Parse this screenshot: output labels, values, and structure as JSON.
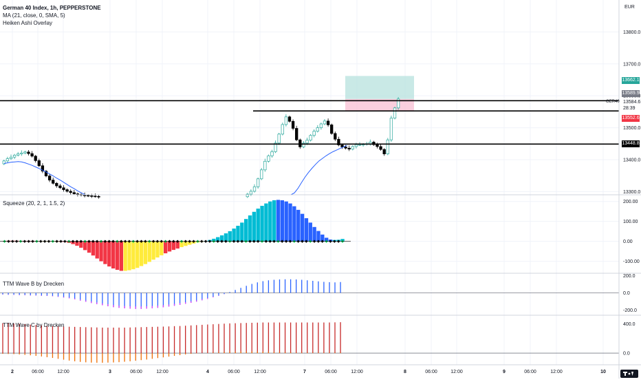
{
  "header": {
    "symbol_line": "German 40 Index, 1h, PEPPERSTONE",
    "ma_line": "MA (21, close, 0, SMA, 5)",
    "heiken_line": "Heiken Ashi Overlay",
    "currency": "EUR"
  },
  "panes": {
    "squeeze_title": "Squeeze (20, 2, 1, 1.5, 2)",
    "wave_b_title": "TTM Wave B by Drecken",
    "wave_c_title": "TTM Wave C by Drecken"
  },
  "price_labels": {
    "target": "13662.1",
    "current": "13589.9",
    "symbol_tag": "GER40",
    "symbol_price": "13584.6",
    "countdown": "28:39",
    "stop": "13552.6",
    "level": "13448.8"
  },
  "colors": {
    "bull": "#26a69a",
    "bear": "#000000",
    "ma": "#2962ff",
    "squeeze_red": "#f23645",
    "squeeze_yellow": "#ffeb3b",
    "squeeze_cyan": "#00bcd4",
    "squeeze_blue": "#2962ff",
    "wave_blue": "#2962ff",
    "wave_pink": "#e040fb",
    "wave_red": "#c62828",
    "wave_orange": "#ef6c00",
    "target_zone": "#b2dfdb",
    "stop_zone": "#f8bbd0",
    "logo_bg": "#131722"
  },
  "chart_data": [
    {
      "type": "candlestick",
      "name_printed": "",
      "y_ticks": [
        "13800.0",
        "13700.0",
        "13600.0",
        "13500.0",
        "13400.0",
        "13300.0"
      ],
      "ylim": [
        13290,
        13900
      ],
      "x_ticks": [
        "2",
        "06:00",
        "12:00",
        "3",
        "06:00",
        "12:00",
        "4",
        "06:00",
        "12:00",
        "7",
        "06:00",
        "12:00",
        "8",
        "06:00",
        "12:00",
        "9",
        "06:00",
        "12:00",
        "10"
      ],
      "horizontal_levels": [
        13584.6,
        13448.8
      ],
      "partial_level": 13552.6,
      "position": {
        "entry": 13589.9,
        "target": 13662.1,
        "stop": 13552.6
      },
      "segments": [
        {
          "start": 13387,
          "closes": [
            13396,
            13403,
            13408,
            13414,
            13418,
            13421,
            13424,
            13419,
            13411,
            13397,
            13381,
            13364,
            13349,
            13336,
            13326,
            13318,
            13312,
            13306,
            13301,
            13297,
            13293,
            13291,
            13289,
            13288,
            13287,
            13286,
            13285,
            13284
          ]
        },
        {
          "start": 13284,
          "closes": [
            13292,
            13301,
            13315,
            13340,
            13368,
            13395,
            13412,
            13425,
            13452,
            13480,
            13510,
            13534,
            13520,
            13498,
            13462,
            13440,
            13452,
            13461,
            13476,
            13489,
            13500,
            13512,
            13521,
            13509,
            13482,
            13464,
            13446,
            13440,
            13436,
            13433,
            13441,
            13447,
            13447,
            13448,
            13450,
            13455,
            13447,
            13441,
            13432,
            13418,
            13462,
            13530,
            13562,
            13590
          ]
        }
      ],
      "ma_segments": [
        {
          "start_close": 13387,
          "values": [
            13388,
            13390,
            13392,
            13393,
            13394,
            13393,
            13390,
            13386,
            13382,
            13377,
            13372,
            13367,
            13361,
            13355,
            13349,
            13342,
            13336,
            13329,
            13322,
            13315,
            13309,
            13302,
            13296,
            13291
          ]
        },
        {
          "values": [
            13290,
            13296,
            13310,
            13328,
            13345,
            13360,
            13373,
            13385,
            13396,
            13404,
            13412,
            13419,
            13425,
            13430,
            13435,
            13440,
            13445
          ]
        }
      ]
    },
    {
      "type": "histogram",
      "name_printed": "Squeeze (20, 2, 1, 1.5, 2)",
      "y_ticks": [
        "200.00",
        "100.00",
        "0.00",
        "-100.00"
      ],
      "ylim": [
        -160,
        230
      ],
      "values": [
        2,
        3,
        3,
        3,
        2,
        2,
        2,
        2,
        2,
        1,
        1,
        1,
        1,
        0,
        -1,
        -3,
        -8,
        -14,
        -22,
        -32,
        -44,
        -57,
        -71,
        -86,
        -100,
        -114,
        -126,
        -136,
        -143,
        -148,
        -148,
        -145,
        -140,
        -133,
        -124,
        -114,
        -103,
        -92,
        -81,
        -70,
        -60,
        -51,
        -43,
        -36,
        -29,
        -23,
        -17,
        -11,
        -6,
        -2,
        2,
        7,
        13,
        21,
        30,
        40,
        51,
        64,
        78,
        94,
        112,
        130,
        148,
        164,
        178,
        190,
        200,
        206,
        208,
        206,
        200,
        190,
        176,
        158,
        138,
        116,
        94,
        72,
        52,
        34,
        18,
        9,
        7,
        8,
        12
      ],
      "colors": [
        "red",
        "red",
        "red",
        "red",
        "red",
        "red",
        "red",
        "red",
        "red",
        "yellow",
        "yellow",
        "yellow",
        "yellow",
        "yellow",
        "red",
        "red",
        "red",
        "red",
        "red",
        "red",
        "red",
        "red",
        "red",
        "red",
        "red",
        "red",
        "red",
        "red",
        "red",
        "red",
        "yellow",
        "yellow",
        "yellow",
        "yellow",
        "yellow",
        "yellow",
        "yellow",
        "yellow",
        "yellow",
        "yellow",
        "red",
        "red",
        "red",
        "red",
        "yellow",
        "yellow",
        "yellow",
        "yellow",
        "yellow",
        "yellow",
        "cyan",
        "cyan",
        "cyan",
        "cyan",
        "cyan",
        "cyan",
        "cyan",
        "cyan",
        "cyan",
        "cyan",
        "cyan",
        "cyan",
        "cyan",
        "cyan",
        "cyan",
        "cyan",
        "cyan",
        "cyan",
        "blue",
        "blue",
        "blue",
        "blue",
        "blue",
        "blue",
        "blue",
        "blue",
        "blue",
        "blue",
        "blue",
        "blue",
        "blue",
        "blue",
        "cyan",
        "cyan",
        "cyan"
      ]
    },
    {
      "type": "bar",
      "name_printed": "TTM Wave B by Drecken",
      "y_ticks": [
        "200.0",
        "0.0",
        "-200.0"
      ],
      "ylim": [
        -260,
        220
      ],
      "values": [
        -20,
        -22,
        -24,
        -26,
        -28,
        -30,
        -32,
        -34,
        -36,
        -40,
        -46,
        -54,
        -64,
        -76,
        -90,
        -104,
        -118,
        -132,
        -144,
        -156,
        -166,
        -174,
        -180,
        -184,
        -186,
        -186,
        -184,
        -180,
        -174,
        -168,
        -160,
        -150,
        -140,
        -128,
        -116,
        -102,
        -86,
        -70,
        -52,
        -34,
        -14,
        10,
        34,
        58,
        82,
        104,
        122,
        136,
        146,
        152,
        156,
        158,
        158,
        156,
        152,
        146,
        140,
        134,
        128,
        124,
        122,
        126
      ]
    },
    {
      "type": "bar",
      "name_printed": "TTM Wave C by Drecken",
      "y_ticks": [
        "400.0",
        "0.0"
      ],
      "ylim": [
        -160,
        510
      ],
      "top_values": [
        410,
        410,
        405,
        400,
        395,
        390,
        385,
        380,
        375,
        370,
        368,
        365,
        362,
        360,
        358,
        356,
        354,
        352,
        350,
        350,
        350,
        350,
        350,
        352,
        354,
        356,
        358,
        360,
        362,
        364,
        366,
        370,
        372,
        376,
        380,
        384,
        388,
        392,
        396,
        400,
        404,
        408,
        410,
        412,
        414,
        416,
        418,
        420,
        420,
        420,
        420,
        420,
        420,
        420,
        420,
        420,
        420,
        420,
        420,
        420,
        422,
        424
      ],
      "bottom_values": [
        -10,
        -12,
        -14,
        -18,
        -24,
        -30,
        -38,
        -46,
        -56,
        -66,
        -78,
        -90,
        -102,
        -112,
        -120,
        -126,
        -130,
        -132,
        -132,
        -130,
        -128,
        -124,
        -118,
        -112,
        -104,
        -96,
        -88,
        -78,
        -68,
        -58,
        -48,
        -38,
        -28,
        -18,
        -10,
        -4,
        0,
        4,
        8,
        12,
        16,
        18,
        20,
        22,
        22,
        22,
        22,
        20,
        18,
        16,
        14,
        12,
        10,
        8,
        8,
        8,
        8,
        8,
        8,
        8,
        8,
        8
      ]
    }
  ]
}
